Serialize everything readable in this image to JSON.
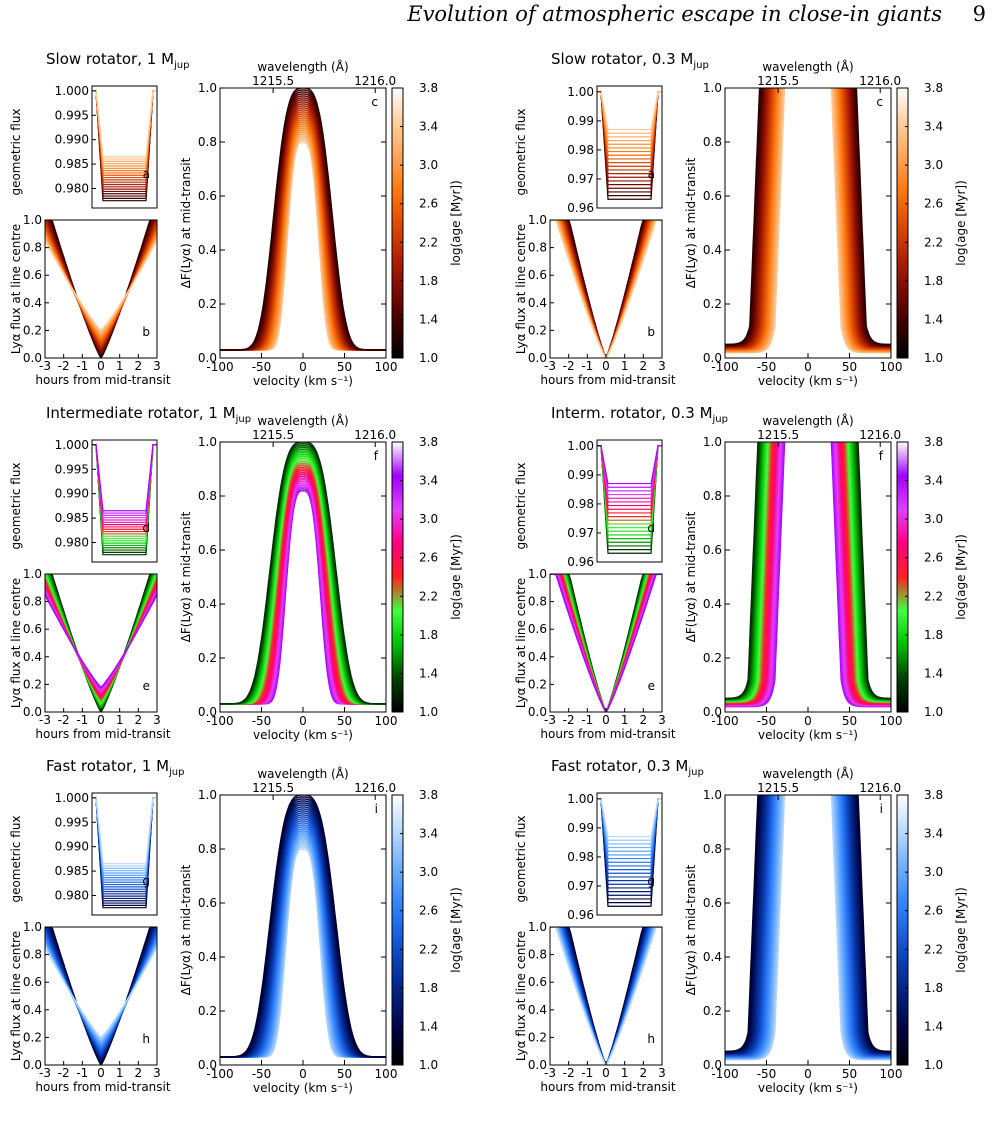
{
  "header": {
    "title": "Evolution of atmospheric escape in close-in giants",
    "page": "9"
  },
  "colors": {
    "slow": [
      "#000000",
      "#3a0000",
      "#7a0a00",
      "#b32400",
      "#e04d00",
      "#ff7a10",
      "#ffa65a",
      "#ffd0a0",
      "#ffffff"
    ],
    "intermediate": [
      "#000000",
      "#004000",
      "#00c000",
      "#40ff40",
      "#ff2020",
      "#ff0080",
      "#e040ff",
      "#a000ff",
      "#ffffff"
    ],
    "fast": [
      "#000000",
      "#000040",
      "#001e78",
      "#0a3cb0",
      "#1e64e6",
      "#3c8cff",
      "#78b4ff",
      "#bedcff",
      "#ffffff"
    ]
  },
  "chart_data": [
    {
      "panel": "slow-1mjup",
      "type": "line",
      "title": "Slow rotator, 1 M",
      "title_sub": "jup",
      "scheme": "slow",
      "geo": {
        "label": "a",
        "ylabel": "geometric flux",
        "ylim": [
          0.976,
          1.001
        ],
        "yticks": [
          "1.000",
          "0.995",
          "0.990",
          "0.985",
          "0.980"
        ],
        "ytick_vals": [
          1.0,
          0.995,
          0.99,
          0.985,
          0.98
        ],
        "depth_range": [
          0.9865,
          0.9775
        ]
      },
      "lya": {
        "label": "b",
        "ylabel": "Lyα flux at line centre",
        "xlabel": "hours from mid-transit",
        "xticks": [
          "-3",
          "-2",
          "-1",
          "0",
          "1",
          "2",
          "3"
        ],
        "yticks": [
          "0.0",
          "0.2",
          "0.4",
          "0.6",
          "0.8",
          "1.0"
        ],
        "min_range": [
          0.2,
          0.0
        ],
        "width": 3.2
      },
      "main": {
        "label": "c",
        "xlabel": "velocity (km s⁻¹)",
        "ylabel": "ΔF(Lyα) at mid-transit",
        "top_label": "wavelength (Å)",
        "top_ticks": [
          "1215.5",
          "1216.0"
        ],
        "xticks": [
          "-100",
          "-50",
          "0",
          "50",
          "100"
        ],
        "yticks": [
          "0.0",
          "0.2",
          "0.4",
          "0.6",
          "0.8",
          "1.0"
        ],
        "xlim": [
          -100,
          100
        ],
        "ylim": [
          0,
          1
        ],
        "kind": "peak",
        "peak_range": [
          1.0,
          0.8
        ],
        "halfwidth_range": [
          40,
          22
        ]
      },
      "colorbar": {
        "label": "log(age [Myr])",
        "ticks": [
          "3.8",
          "3.4",
          "3.0",
          "2.6",
          "2.2",
          "1.8",
          "1.4",
          "1.0"
        ]
      }
    },
    {
      "panel": "slow-03mjup",
      "type": "line",
      "title": "Slow rotator, 0.3 M",
      "title_sub": "jup",
      "scheme": "slow",
      "geo": {
        "label": "a",
        "ylabel": "geometric flux",
        "ylim": [
          0.96,
          1.002
        ],
        "yticks": [
          "1.00",
          "0.99",
          "0.98",
          "0.97",
          "0.96"
        ],
        "ytick_vals": [
          1.0,
          0.99,
          0.98,
          0.97,
          0.96
        ],
        "depth_range": [
          0.987,
          0.963
        ]
      },
      "lya": {
        "label": "b",
        "ylabel": "Lyα flux at line centre",
        "xlabel": "hours from mid-transit",
        "xticks": [
          "-3",
          "-2",
          "-1",
          "0",
          "1",
          "2",
          "3"
        ],
        "yticks": [
          "0.0",
          "0.2",
          "0.4",
          "0.6",
          "0.8",
          "1.0"
        ],
        "min_range": [
          0.0,
          0.0
        ],
        "width": 2.4
      },
      "main": {
        "label": "c",
        "xlabel": "velocity (km s⁻¹)",
        "ylabel": "ΔF(Lyα) at mid-transit",
        "top_label": "wavelength (Å)",
        "top_ticks": [
          "1215.5",
          "1216.0"
        ],
        "xticks": [
          "-100",
          "-50",
          "0",
          "50",
          "100"
        ],
        "yticks": [
          "0.0",
          "0.2",
          "0.4",
          "0.6",
          "0.8",
          "1.0"
        ],
        "xlim": [
          -100,
          100
        ],
        "ylim": [
          0,
          1
        ],
        "kind": "plateau",
        "edge_range": [
          40,
          70
        ]
      },
      "colorbar": {
        "label": "log(age [Myr])",
        "ticks": [
          "3.8",
          "3.4",
          "3.0",
          "2.6",
          "2.2",
          "1.8",
          "1.4",
          "1.0"
        ]
      }
    },
    {
      "panel": "inter-1mjup",
      "type": "line",
      "title": "Intermediate rotator, 1 M",
      "title_sub": "jup",
      "scheme": "intermediate",
      "geo": {
        "label": "d",
        "ylabel": "geometric flux",
        "ylim": [
          0.976,
          1.001
        ],
        "yticks": [
          "1.000",
          "0.995",
          "0.990",
          "0.985",
          "0.980"
        ],
        "ytick_vals": [
          1.0,
          0.995,
          0.99,
          0.985,
          0.98
        ],
        "depth_range": [
          0.9865,
          0.9775
        ]
      },
      "lya": {
        "label": "e",
        "ylabel": "Lyα flux at line centre",
        "xlabel": "hours from mid-transit",
        "xticks": [
          "-3",
          "-2",
          "-1",
          "0",
          "1",
          "2",
          "3"
        ],
        "yticks": [
          "0.0",
          "0.2",
          "0.4",
          "0.6",
          "0.8",
          "1.0"
        ],
        "min_range": [
          0.18,
          0.0
        ],
        "width": 3.2
      },
      "main": {
        "label": "f",
        "xlabel": "velocity (km s⁻¹)",
        "ylabel": "ΔF(Lyα) at mid-transit",
        "top_label": "wavelength (Å)",
        "top_ticks": [
          "1215.5",
          "1216.0"
        ],
        "xticks": [
          "-100",
          "-50",
          "0",
          "50",
          "100"
        ],
        "yticks": [
          "0.0",
          "0.2",
          "0.4",
          "0.6",
          "0.8",
          "1.0"
        ],
        "xlim": [
          -100,
          100
        ],
        "ylim": [
          0,
          1
        ],
        "kind": "peak",
        "peak_range": [
          1.0,
          0.82
        ],
        "halfwidth_range": [
          45,
          24
        ]
      },
      "colorbar": {
        "label": "log(age [Myr])",
        "ticks": [
          "3.8",
          "3.4",
          "3.0",
          "2.6",
          "2.2",
          "1.8",
          "1.4",
          "1.0"
        ]
      }
    },
    {
      "panel": "inter-03mjup",
      "type": "line",
      "title": "Interm. rotator, 0.3 M",
      "title_sub": "jup",
      "scheme": "intermediate",
      "geo": {
        "label": "d",
        "ylabel": "geometric flux",
        "ylim": [
          0.96,
          1.002
        ],
        "yticks": [
          "1.00",
          "0.99",
          "0.98",
          "0.97",
          "0.96"
        ],
        "ytick_vals": [
          1.0,
          0.99,
          0.98,
          0.97,
          0.96
        ],
        "depth_range": [
          0.987,
          0.963
        ]
      },
      "lya": {
        "label": "e",
        "ylabel": "Lyα flux at line centre",
        "xlabel": "hours from mid-transit",
        "xticks": [
          "-3",
          "-2",
          "-1",
          "0",
          "1",
          "2",
          "3"
        ],
        "yticks": [
          "0.0",
          "0.2",
          "0.4",
          "0.6",
          "0.8",
          "1.0"
        ],
        "min_range": [
          0.0,
          0.0
        ],
        "width": 2.4
      },
      "main": {
        "label": "f",
        "xlabel": "velocity (km s⁻¹)",
        "ylabel": "ΔF(Lyα) at mid-transit",
        "top_label": "wavelength (Å)",
        "top_ticks": [
          "1215.5",
          "1216.0"
        ],
        "xticks": [
          "-100",
          "-50",
          "0",
          "50",
          "100"
        ],
        "yticks": [
          "0.0",
          "0.2",
          "0.4",
          "0.6",
          "0.8",
          "1.0"
        ],
        "xlim": [
          -100,
          100
        ],
        "ylim": [
          0,
          1
        ],
        "kind": "plateau",
        "edge_range": [
          40,
          72
        ]
      },
      "colorbar": {
        "label": "log(age [Myr])",
        "ticks": [
          "3.8",
          "3.4",
          "3.0",
          "2.6",
          "2.2",
          "1.8",
          "1.4",
          "1.0"
        ]
      }
    },
    {
      "panel": "fast-1mjup",
      "type": "line",
      "title": "Fast rotator, 1 M",
      "title_sub": "jup",
      "scheme": "fast",
      "geo": {
        "label": "g",
        "ylabel": "geometric flux",
        "ylim": [
          0.976,
          1.001
        ],
        "yticks": [
          "1.000",
          "0.995",
          "0.990",
          "0.985",
          "0.980"
        ],
        "ytick_vals": [
          1.0,
          0.995,
          0.99,
          0.985,
          0.98
        ],
        "depth_range": [
          0.9865,
          0.9775
        ]
      },
      "lya": {
        "label": "h",
        "ylabel": "Lyα flux at line centre",
        "xlabel": "hours from mid-transit",
        "xticks": [
          "-3",
          "-2",
          "-1",
          "0",
          "1",
          "2",
          "3"
        ],
        "yticks": [
          "0.0",
          "0.2",
          "0.4",
          "0.6",
          "0.8",
          "1.0"
        ],
        "min_range": [
          0.2,
          0.0
        ],
        "width": 3.2
      },
      "main": {
        "label": "i",
        "xlabel": "velocity (km s⁻¹)",
        "ylabel": "ΔF(Lyα) at mid-transit",
        "top_label": "wavelength (Å)",
        "top_ticks": [
          "1215.5",
          "1216.0"
        ],
        "xticks": [
          "-100",
          "-50",
          "0",
          "50",
          "100"
        ],
        "yticks": [
          "0.0",
          "0.2",
          "0.4",
          "0.6",
          "0.8",
          "1.0"
        ],
        "xlim": [
          -100,
          100
        ],
        "ylim": [
          0,
          1
        ],
        "kind": "peak",
        "peak_range": [
          1.0,
          0.8
        ],
        "halfwidth_range": [
          45,
          24
        ]
      },
      "colorbar": {
        "label": "log(age [Myr])",
        "ticks": [
          "3.8",
          "3.4",
          "3.0",
          "2.6",
          "2.2",
          "1.8",
          "1.4",
          "1.0"
        ]
      }
    },
    {
      "panel": "fast-03mjup",
      "type": "line",
      "title": "Fast rotator, 0.3 M",
      "title_sub": "jup",
      "scheme": "fast",
      "geo": {
        "label": "g",
        "ylabel": "geometric flux",
        "ylim": [
          0.96,
          1.002
        ],
        "yticks": [
          "1.00",
          "0.99",
          "0.98",
          "0.97",
          "0.96"
        ],
        "ytick_vals": [
          1.0,
          0.99,
          0.98,
          0.97,
          0.96
        ],
        "depth_range": [
          0.987,
          0.963
        ]
      },
      "lya": {
        "label": "h",
        "ylabel": "Lyα flux at line centre",
        "xlabel": "hours from mid-transit",
        "xticks": [
          "-3",
          "-2",
          "-1",
          "0",
          "1",
          "2",
          "3"
        ],
        "yticks": [
          "0.0",
          "0.2",
          "0.4",
          "0.6",
          "0.8",
          "1.0"
        ],
        "min_range": [
          0.0,
          0.0
        ],
        "width": 2.4
      },
      "main": {
        "label": "i",
        "xlabel": "velocity (km s⁻¹)",
        "ylabel": "ΔF(Lyα) at mid-transit",
        "top_label": "wavelength (Å)",
        "top_ticks": [
          "1215.5",
          "1216.0"
        ],
        "xticks": [
          "-100",
          "-50",
          "0",
          "50",
          "100"
        ],
        "yticks": [
          "0.0",
          "0.2",
          "0.4",
          "0.6",
          "0.8",
          "1.0"
        ],
        "xlim": [
          -100,
          100
        ],
        "ylim": [
          0,
          1
        ],
        "kind": "plateau",
        "edge_range": [
          40,
          72
        ]
      },
      "colorbar": {
        "label": "log(age [Myr])",
        "ticks": [
          "3.8",
          "3.4",
          "3.0",
          "2.6",
          "2.2",
          "1.8",
          "1.4",
          "1.0"
        ]
      }
    }
  ]
}
